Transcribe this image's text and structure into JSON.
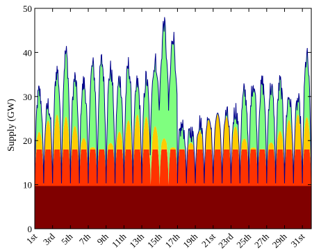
{
  "chart_data": {
    "type": "area",
    "subtype": "stacked",
    "ylabel": "Supply (GW)",
    "xlabel": "",
    "ylim": [
      0,
      50
    ],
    "yticks": [
      "0",
      "10",
      "20",
      "30",
      "40",
      "50"
    ],
    "xlim": [
      1,
      32
    ],
    "xtick_labels": [
      "1st",
      "3rd",
      "5th",
      "7th",
      "9th",
      "11th",
      "13th",
      "15th",
      "17th",
      "19th",
      "21st",
      "23rd",
      "25th",
      "27th",
      "29th",
      "31st"
    ],
    "grid": false,
    "legend": "none",
    "outline_color": "#00008b",
    "series": [
      {
        "key": "base",
        "color": "#800000",
        "level_gw": 9.7
      },
      {
        "key": "red",
        "color": "#ff3300",
        "day_peak_gw": 18,
        "night_trough_gw": 10
      },
      {
        "key": "yellow",
        "color": "#ffcc00",
        "day_peak_range_gw": [
          18,
          26
        ]
      },
      {
        "key": "green",
        "color": "#7fff7f",
        "note_peak_day": 15
      }
    ],
    "total_profile": {
      "day": [
        1,
        2,
        3,
        4,
        5,
        6,
        7,
        8,
        9,
        10,
        11,
        12,
        13,
        14,
        15,
        16,
        17,
        18,
        19,
        20,
        21,
        22,
        23,
        24,
        25,
        26,
        27,
        28,
        29,
        30,
        31
      ],
      "peak_gw": [
        31,
        28,
        36,
        40,
        34,
        33,
        37,
        38,
        36,
        34,
        37,
        33,
        34,
        38,
        47,
        44,
        23,
        22,
        24,
        25,
        24,
        26,
        27,
        31,
        33,
        33,
        32,
        33,
        30,
        29,
        39
      ]
    }
  }
}
